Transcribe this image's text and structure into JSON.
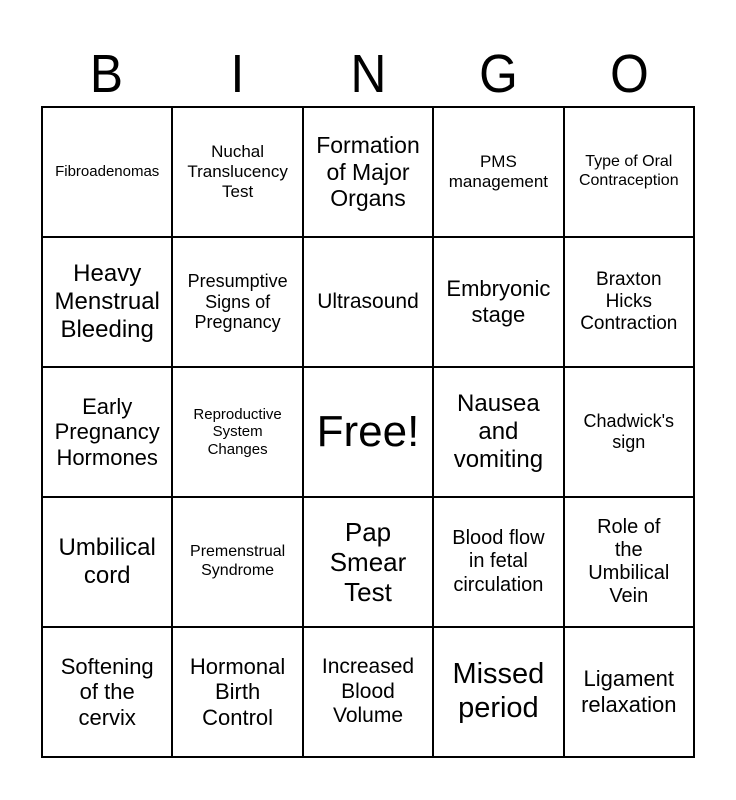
{
  "header": {
    "letters": [
      "B",
      "I",
      "N",
      "G",
      "O"
    ]
  },
  "grid": {
    "rows": [
      [
        [
          "Fibroadenomas"
        ],
        [
          "Nuchal",
          "Translucency",
          "Test"
        ],
        [
          "Formation",
          "of Major",
          "Organs"
        ],
        [
          "PMS",
          "management"
        ],
        [
          "Type of Oral",
          "Contraception"
        ]
      ],
      [
        [
          "Heavy",
          "Menstrual",
          "Bleeding"
        ],
        [
          "Presumptive",
          "Signs of",
          "Pregnancy"
        ],
        [
          "Ultrasound"
        ],
        [
          "Embryonic",
          "stage"
        ],
        [
          "Braxton",
          "Hicks",
          "Contraction"
        ]
      ],
      [
        [
          "Early",
          "Pregnancy",
          "Hormones"
        ],
        [
          "Reproductive",
          "System",
          "Changes"
        ],
        [
          "Free!"
        ],
        [
          "Nausea",
          "and",
          "vomiting"
        ],
        [
          "Chadwick's",
          "sign"
        ]
      ],
      [
        [
          "Umbilical",
          "cord"
        ],
        [
          "Premenstrual",
          "Syndrome"
        ],
        [
          "Pap",
          "Smear",
          "Test"
        ],
        [
          "Blood flow",
          "in fetal",
          "circulation"
        ],
        [
          "Role of",
          "the",
          "Umbilical",
          "Vein"
        ]
      ],
      [
        [
          "Softening",
          "of the",
          "cervix"
        ],
        [
          "Hormonal",
          "Birth",
          "Control"
        ],
        [
          "Increased",
          "Blood",
          "Volume"
        ],
        [
          "Missed",
          "period"
        ],
        [
          "Ligament",
          "relaxation"
        ]
      ]
    ]
  },
  "colors": {
    "text": "#000000",
    "border": "#000000",
    "background": "#ffffff"
  }
}
